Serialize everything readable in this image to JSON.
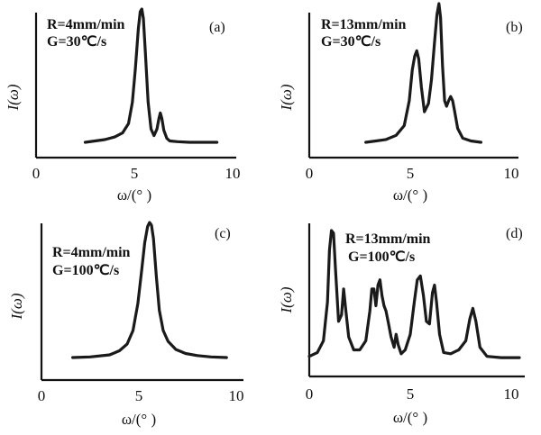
{
  "chart_data": [
    {
      "type": "line",
      "panel_label": "(a)",
      "annotation_lines": [
        "R=4mm/min",
        "G=30℃/s"
      ],
      "xlabel": "ω/(° )",
      "ylabel": "I(ω)",
      "xlim": [
        0,
        10
      ],
      "xticks": [
        "0",
        "5",
        "10"
      ],
      "series": [
        {
          "x": [
            2.5,
            3.0,
            3.5,
            4.0,
            4.4,
            4.7,
            4.9,
            5.05,
            5.2,
            5.3,
            5.38,
            5.46,
            5.55,
            5.7,
            5.85,
            6.0,
            6.15,
            6.25,
            6.32,
            6.4,
            6.5,
            6.65,
            6.8,
            7.2,
            7.8,
            8.5,
            9.2
          ],
          "y": [
            0.0,
            0.01,
            0.02,
            0.04,
            0.07,
            0.14,
            0.3,
            0.55,
            0.85,
            0.98,
            1.0,
            0.93,
            0.7,
            0.3,
            0.1,
            0.05,
            0.1,
            0.18,
            0.22,
            0.18,
            0.09,
            0.03,
            0.01,
            0.005,
            0.0,
            0.0,
            0.0
          ]
        }
      ]
    },
    {
      "type": "line",
      "panel_label": "(b)",
      "annotation_lines": [
        "R=13mm/min",
        "G=30℃/s"
      ],
      "xlabel": "ω/(° )",
      "ylabel": "I(ω)",
      "xlim": [
        0,
        10
      ],
      "xticks": [
        "0",
        "5",
        "10"
      ],
      "series": [
        {
          "x": [
            2.8,
            3.3,
            3.8,
            4.3,
            4.7,
            4.95,
            5.1,
            5.22,
            5.32,
            5.42,
            5.55,
            5.7,
            5.9,
            6.05,
            6.2,
            6.32,
            6.42,
            6.5,
            6.6,
            6.7,
            6.8,
            6.9,
            7.0,
            7.1,
            7.2,
            7.35,
            7.6,
            8.0,
            8.5
          ],
          "y": [
            0.0,
            0.01,
            0.02,
            0.05,
            0.12,
            0.3,
            0.52,
            0.62,
            0.66,
            0.6,
            0.4,
            0.22,
            0.28,
            0.45,
            0.72,
            0.92,
            1.0,
            0.9,
            0.55,
            0.3,
            0.26,
            0.3,
            0.33,
            0.3,
            0.22,
            0.1,
            0.03,
            0.01,
            0.0
          ]
        }
      ]
    },
    {
      "type": "line",
      "panel_label": "(c)",
      "annotation_lines": [
        "R=4mm/min",
        "G=100℃/s"
      ],
      "xlabel": "ω/(° )",
      "ylabel": "I(ω)",
      "xlim": [
        0,
        10
      ],
      "xticks": [
        "0",
        "5",
        "10"
      ],
      "series": [
        {
          "x": [
            1.6,
            2.5,
            3.5,
            4.0,
            4.4,
            4.7,
            4.95,
            5.15,
            5.3,
            5.45,
            5.55,
            5.65,
            5.75,
            5.9,
            6.05,
            6.25,
            6.5,
            6.9,
            7.4,
            8.0,
            8.7,
            9.5
          ],
          "y": [
            0.0,
            0.005,
            0.02,
            0.05,
            0.1,
            0.2,
            0.4,
            0.65,
            0.85,
            0.97,
            1.0,
            0.98,
            0.88,
            0.6,
            0.35,
            0.2,
            0.12,
            0.06,
            0.03,
            0.015,
            0.005,
            0.0
          ]
        }
      ]
    },
    {
      "type": "line",
      "panel_label": "(d)",
      "annotation_lines": [
        "R=13mm/min",
        "G=100℃/s"
      ],
      "xlabel": "ω/(° )",
      "ylabel": "I(ω)",
      "xlim": [
        0,
        10
      ],
      "xticks": [
        "0",
        "5",
        "10"
      ],
      "series": [
        {
          "x": [
            0.0,
            0.4,
            0.7,
            0.9,
            1.0,
            1.1,
            1.2,
            1.3,
            1.45,
            1.6,
            1.7,
            1.8,
            1.95,
            2.2,
            2.5,
            2.8,
            3.0,
            3.1,
            3.2,
            3.3,
            3.4,
            3.5,
            3.6,
            3.7,
            3.8,
            3.9,
            4.05,
            4.2,
            4.3,
            4.4,
            4.55,
            4.75,
            5.0,
            5.2,
            5.35,
            5.5,
            5.65,
            5.8,
            5.95,
            6.1,
            6.2,
            6.3,
            6.45,
            6.65,
            7.0,
            7.4,
            7.75,
            7.95,
            8.1,
            8.25,
            8.45,
            8.8,
            9.5,
            10.4
          ],
          "y": [
            0.03,
            0.06,
            0.15,
            0.45,
            0.85,
            1.0,
            0.98,
            0.7,
            0.3,
            0.35,
            0.55,
            0.4,
            0.18,
            0.08,
            0.08,
            0.15,
            0.38,
            0.55,
            0.55,
            0.42,
            0.58,
            0.62,
            0.5,
            0.42,
            0.38,
            0.3,
            0.18,
            0.1,
            0.2,
            0.12,
            0.05,
            0.08,
            0.2,
            0.45,
            0.62,
            0.65,
            0.5,
            0.3,
            0.28,
            0.52,
            0.58,
            0.45,
            0.2,
            0.06,
            0.05,
            0.08,
            0.15,
            0.32,
            0.4,
            0.3,
            0.1,
            0.03,
            0.02,
            0.02
          ]
        }
      ]
    }
  ]
}
